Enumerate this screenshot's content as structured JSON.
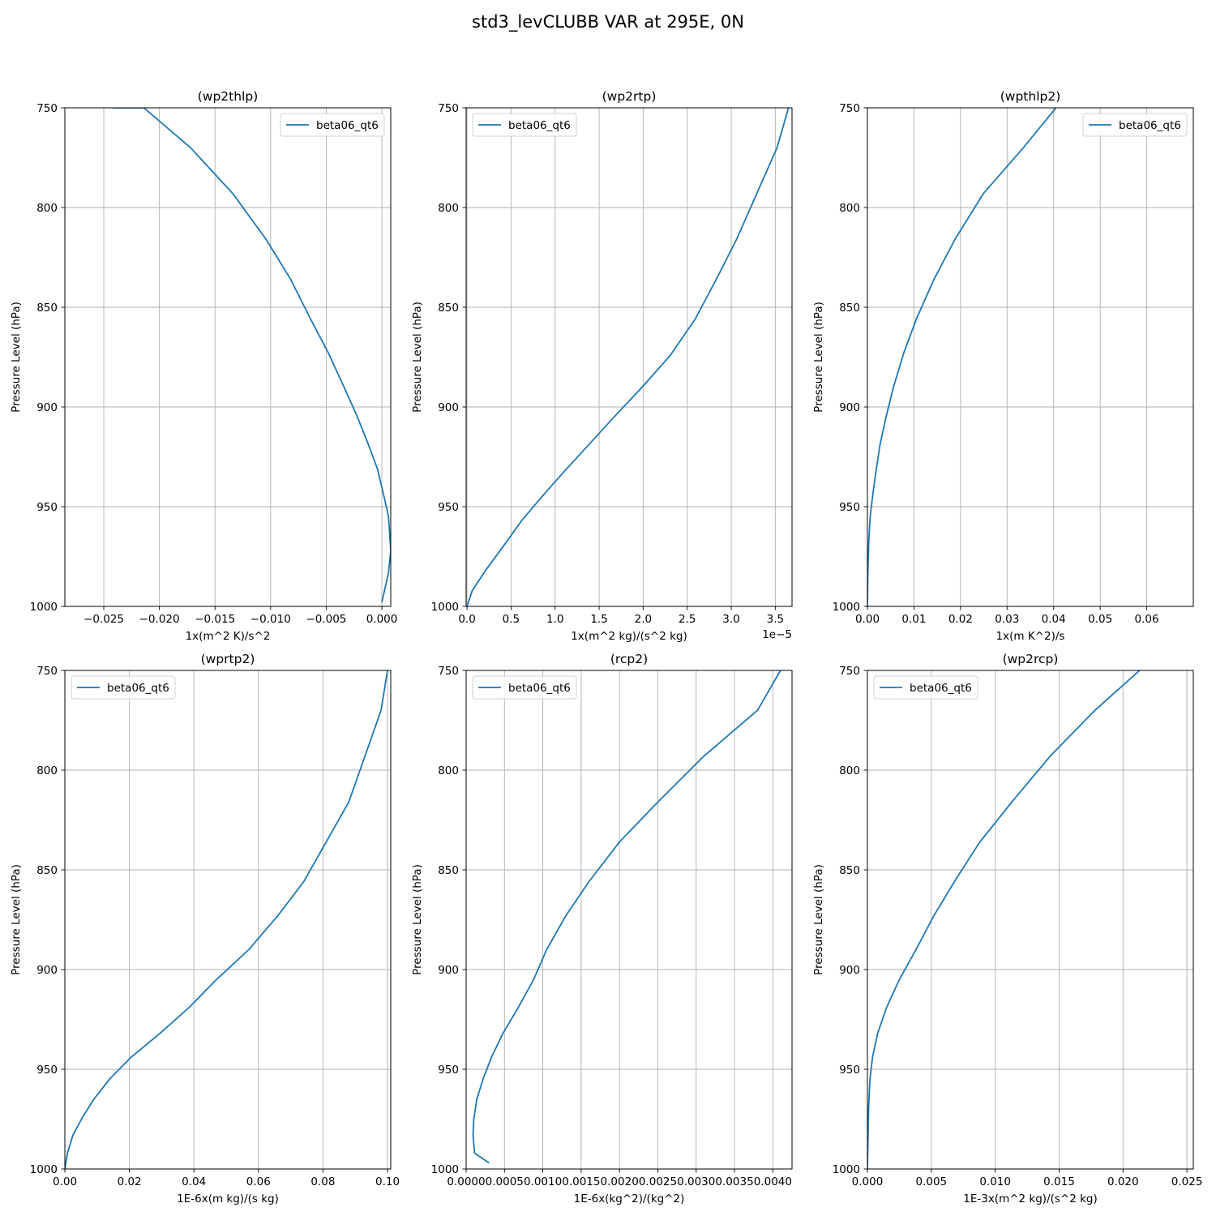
{
  "figure": {
    "title": "std3_levCLUBB VAR at 295E, 0N"
  },
  "chart_data": [
    {
      "type": "line",
      "title": "(wp2thlp)",
      "xlabel": "1x(m^2 K)/s^2",
      "ylabel": "Pressure Level (hPa)",
      "xlim": [
        -0.0285,
        0.0008
      ],
      "ylim": [
        1000,
        750
      ],
      "yinverted": true,
      "x_ticks": [
        -0.025,
        -0.02,
        -0.015,
        -0.01,
        -0.005,
        0.0
      ],
      "x_tick_labels": [
        "−0.025",
        "−0.020",
        "−0.015",
        "−0.010",
        "−0.005",
        "0.000"
      ],
      "x_offset_label": "",
      "y_ticks": [
        750,
        800,
        850,
        900,
        950,
        1000
      ],
      "y_tick_labels": [
        "750",
        "800",
        "850",
        "900",
        "950",
        "1000"
      ],
      "grid": true,
      "legend": "upper-right",
      "series": [
        {
          "name": "beta06_qt6",
          "color": "#1f77b4",
          "x": [
            0.0,
            0.0006,
            0.0008,
            0.0006,
            0.0002,
            -0.0004,
            -0.0012,
            -0.0022,
            -0.0034,
            -0.0048,
            -0.0064,
            -0.0082,
            -0.0104,
            -0.0134,
            -0.0172,
            -0.0214,
            -0.0242
          ],
          "y": [
            998,
            983,
            972,
            955,
            945,
            931,
            919,
            905,
            890,
            873,
            856,
            836,
            816,
            793,
            770,
            750,
            750
          ]
        }
      ]
    },
    {
      "type": "line",
      "title": "(wp2rtp)",
      "xlabel": "1x(m^2 kg)/(s^2 kg)",
      "ylabel": "Pressure Level (hPa)",
      "xlim": [
        -1e-07,
        3.69e-05
      ],
      "ylim": [
        1000,
        750
      ],
      "yinverted": true,
      "x_ticks": [
        0,
        5e-06,
        1e-05,
        1.5e-05,
        2e-05,
        2.5e-05,
        3e-05,
        3.5e-05
      ],
      "x_tick_labels": [
        "0.0",
        "0.5",
        "1.0",
        "1.5",
        "2.0",
        "2.5",
        "3.0",
        "3.5"
      ],
      "x_offset_label": "1e−5",
      "y_ticks": [
        750,
        800,
        850,
        900,
        950,
        1000
      ],
      "y_tick_labels": [
        "750",
        "800",
        "850",
        "900",
        "950",
        "1000"
      ],
      "grid": true,
      "legend": "upper-left",
      "series": [
        {
          "name": "beta06_qt6",
          "color": "#1f77b4",
          "x": [
            0.0,
            6e-07,
            2.1e-06,
            4.1e-06,
            6.2e-06,
            8.5e-06,
            1.09e-05,
            1.36e-05,
            1.67e-05,
            1.99e-05,
            2.31e-05,
            2.59e-05,
            2.83e-05,
            3.06e-05,
            3.29e-05,
            3.52e-05,
            3.65e-05
          ],
          "y": [
            1000,
            992,
            982,
            970,
            957,
            945,
            933,
            920,
            905,
            890,
            874,
            856,
            836,
            816,
            793,
            770,
            750
          ]
        }
      ]
    },
    {
      "type": "line",
      "title": "(wpthlp2)",
      "xlabel": "1x(m K^2)/s",
      "ylabel": "Pressure Level (hPa)",
      "xlim": [
        0,
        0.07
      ],
      "ylim": [
        1000,
        750
      ],
      "yinverted": true,
      "x_ticks": [
        0,
        0.01,
        0.02,
        0.03,
        0.04,
        0.05,
        0.06
      ],
      "x_tick_labels": [
        "0.00",
        "0.01",
        "0.02",
        "0.03",
        "0.04",
        "0.05",
        "0.06"
      ],
      "x_offset_label": "",
      "y_ticks": [
        750,
        800,
        850,
        900,
        950,
        1000
      ],
      "y_tick_labels": [
        "750",
        "800",
        "850",
        "900",
        "950",
        "1000"
      ],
      "grid": true,
      "legend": "upper-right",
      "series": [
        {
          "name": "beta06_qt6",
          "color": "#1f77b4",
          "x": [
            0.0,
            0.0001,
            0.0003,
            0.0006,
            0.0011,
            0.0018,
            0.0027,
            0.004,
            0.0056,
            0.0078,
            0.0105,
            0.0143,
            0.0188,
            0.0249,
            0.0335,
            0.0405
          ],
          "y": [
            1000,
            983,
            967,
            955,
            945,
            933,
            919,
            905,
            890,
            873,
            856,
            836,
            816,
            793,
            770,
            750
          ]
        }
      ]
    },
    {
      "type": "line",
      "title": "(wprtp2)",
      "xlabel": "1E-6x(m kg)/(s kg)",
      "ylabel": "Pressure Level (hPa)",
      "xlim": [
        0,
        0.101
      ],
      "ylim": [
        1000,
        750
      ],
      "yinverted": true,
      "x_ticks": [
        0,
        0.02,
        0.04,
        0.06,
        0.08,
        0.1
      ],
      "x_tick_labels": [
        "0.00",
        "0.02",
        "0.04",
        "0.06",
        "0.08",
        "0.10"
      ],
      "x_offset_label": "",
      "y_ticks": [
        750,
        800,
        850,
        900,
        950,
        1000
      ],
      "y_tick_labels": [
        "750",
        "800",
        "850",
        "900",
        "950",
        "1000"
      ],
      "grid": true,
      "legend": "upper-left",
      "series": [
        {
          "name": "beta06_qt6",
          "color": "#1f77b4",
          "x": [
            0.0,
            0.0008,
            0.0025,
            0.0055,
            0.009,
            0.0138,
            0.0205,
            0.0295,
            0.0385,
            0.047,
            0.057,
            0.066,
            0.074,
            0.081,
            0.088,
            0.093,
            0.098,
            0.1
          ],
          "y": [
            1000,
            992,
            983,
            974,
            965,
            955,
            944,
            932,
            919,
            905,
            890,
            873,
            856,
            836,
            816,
            793,
            770,
            750
          ]
        }
      ]
    },
    {
      "type": "line",
      "title": "(rcp2)",
      "xlabel": "1E-6x(kg^2)/(kg^2)",
      "ylabel": "Pressure Level (hPa)",
      "xlim": [
        0,
        0.00425
      ],
      "ylim": [
        1000,
        750
      ],
      "yinverted": true,
      "x_ticks": [
        0,
        0.0005,
        0.001,
        0.0015,
        0.002,
        0.0025,
        0.003,
        0.0035,
        0.004
      ],
      "x_tick_labels": [
        "0.0000",
        "0.0005",
        "0.0010",
        "0.0015",
        "0.0020",
        "0.0025",
        "0.0030",
        "0.0035",
        "0.0040"
      ],
      "x_offset_label": "",
      "y_ticks": [
        750,
        800,
        850,
        900,
        950,
        1000
      ],
      "y_tick_labels": [
        "750",
        "800",
        "850",
        "900",
        "950",
        "1000"
      ],
      "grid": true,
      "legend": "upper-left",
      "series": [
        {
          "name": "beta06_qt6",
          "color": "#1f77b4",
          "x": [
            0.0003,
            0.00011,
            9e-05,
            0.0001,
            0.00014,
            0.00022,
            0.00033,
            0.00048,
            0.00068,
            0.00088,
            0.00105,
            0.0013,
            0.0016,
            0.002,
            0.0025,
            0.0031,
            0.0038,
            0.0041
          ],
          "y": [
            997,
            992,
            983,
            975,
            965,
            955,
            944,
            932,
            919,
            905,
            890,
            873,
            856,
            836,
            816,
            793,
            770,
            750
          ]
        }
      ]
    },
    {
      "type": "line",
      "title": "(wp2rcp)",
      "xlabel": "1E-3x(m^2 kg)/(s^2 kg)",
      "ylabel": "Pressure Level (hPa)",
      "xlim": [
        0,
        0.0255
      ],
      "ylim": [
        1000,
        750
      ],
      "yinverted": true,
      "x_ticks": [
        0,
        0.005,
        0.01,
        0.015,
        0.02,
        0.025
      ],
      "x_tick_labels": [
        "0.000",
        "0.005",
        "0.010",
        "0.015",
        "0.020",
        "0.025"
      ],
      "x_offset_label": "",
      "y_ticks": [
        750,
        800,
        850,
        900,
        950,
        1000
      ],
      "y_tick_labels": [
        "750",
        "800",
        "850",
        "900",
        "950",
        "1000"
      ],
      "grid": true,
      "legend": "upper-left",
      "series": [
        {
          "name": "beta06_qt6",
          "color": "#1f77b4",
          "x": [
            0.0,
            0.0001,
            0.0002,
            0.0004,
            0.0008,
            0.0015,
            0.0025,
            0.0038,
            0.0052,
            0.0068,
            0.0088,
            0.0113,
            0.0143,
            0.0178,
            0.0213
          ],
          "y": [
            1000,
            968,
            955,
            944,
            932,
            919,
            905,
            890,
            873,
            856,
            836,
            816,
            793,
            770,
            750
          ]
        }
      ]
    }
  ]
}
